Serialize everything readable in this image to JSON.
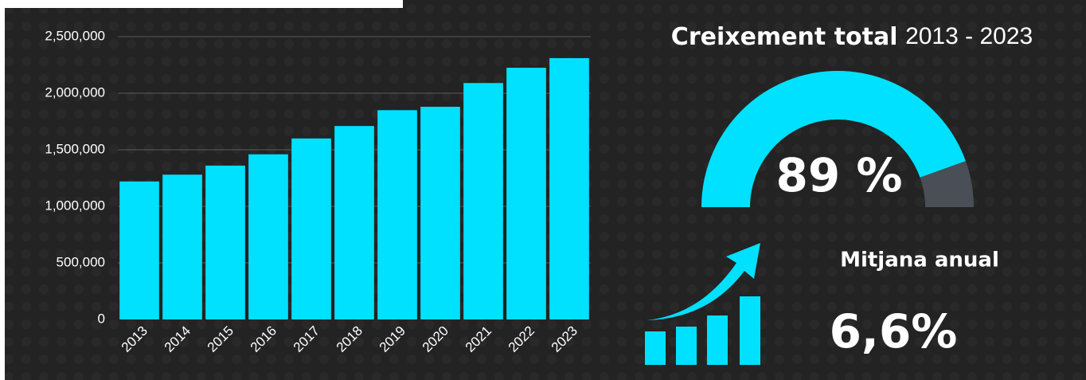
{
  "chart_data": [
    {
      "type": "bar",
      "categories": [
        "2013",
        "2014",
        "2015",
        "2016",
        "2017",
        "2018",
        "2019",
        "2020",
        "2021",
        "2022",
        "2023"
      ],
      "values": [
        1220000,
        1280000,
        1360000,
        1460000,
        1600000,
        1710000,
        1850000,
        1880000,
        2090000,
        2225000,
        2310000
      ],
      "color": "#00e1ff",
      "ylim": [
        0,
        2500000
      ],
      "yticks": [
        0,
        {
          "value": 500000,
          "label": "500,000"
        },
        {
          "value": 1000000,
          "label": "1,000,000"
        },
        {
          "value": 1500000,
          "label": "1,500,000"
        },
        {
          "value": 2000000,
          "label": "2,000,000"
        },
        {
          "value": 2500000,
          "label": "2,500,000"
        }
      ],
      "grid": true
    },
    {
      "type": "gauge",
      "title": "Creixement total",
      "subtitle": "2013 - 2023",
      "values": [
        89
      ],
      "value_labels": [
        "89 %"
      ],
      "ylim": [
        0,
        100
      ],
      "color": "#00e1ff",
      "rest_color": "#4a4f57"
    }
  ],
  "kpi": {
    "label": "Mitjana anual",
    "value": "6,6%"
  }
}
